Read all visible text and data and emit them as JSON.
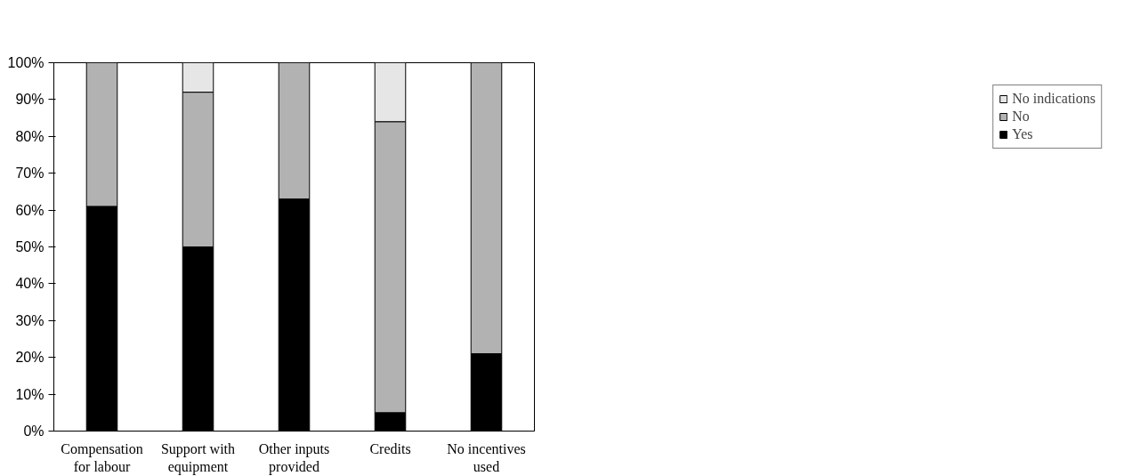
{
  "chart_data": {
    "type": "bar",
    "stacked": true,
    "categories": [
      "Compensation for labour",
      "Support with equipment",
      "Other inputs provided",
      "Credits",
      "No incentives used"
    ],
    "series": [
      {
        "name": "Yes",
        "color": "#000000",
        "values": [
          61,
          50,
          63,
          5,
          21
        ]
      },
      {
        "name": "No",
        "color": "#b2b2b2",
        "values": [
          39,
          42,
          37,
          79,
          79
        ]
      },
      {
        "name": "No indications",
        "color": "#e6e6e6",
        "values": [
          null,
          8,
          null,
          16,
          null
        ]
      }
    ],
    "ylim": [
      0,
      100
    ],
    "yticks": [
      {
        "value": 0,
        "label": "0%"
      },
      {
        "value": 10,
        "label": "10%"
      },
      {
        "value": 20,
        "label": "20%"
      },
      {
        "value": 30,
        "label": "30%"
      },
      {
        "value": 40,
        "label": "40%"
      },
      {
        "value": 50,
        "label": "50%"
      },
      {
        "value": 60,
        "label": "60%"
      },
      {
        "value": 70,
        "label": "70%"
      },
      {
        "value": 80,
        "label": "80%"
      },
      {
        "value": 90,
        "label": "90%"
      },
      {
        "value": 100,
        "label": "100%"
      }
    ],
    "grid": false,
    "legend": "right"
  }
}
